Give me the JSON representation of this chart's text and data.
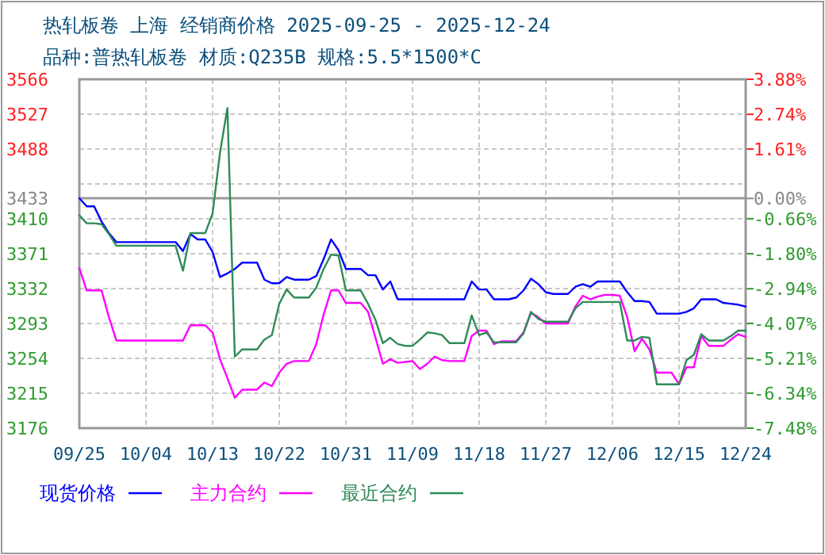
{
  "chart_data": {
    "type": "line",
    "title": "热轧板卷 上海 经销商价格 2025-09-25 - 2025-12-24",
    "subtitle": "品种:普热轧板卷 材质:Q235B 规格:5.5*1500*C",
    "x": [
      "2025-09-25",
      "2025-09-26",
      "2025-09-27",
      "2025-09-28",
      "2025-09-29",
      "2025-09-30",
      "2025-10-01",
      "2025-10-02",
      "2025-10-03",
      "2025-10-04",
      "2025-10-05",
      "2025-10-06",
      "2025-10-07",
      "2025-10-08",
      "2025-10-09",
      "2025-10-10",
      "2025-10-11",
      "2025-10-12",
      "2025-10-13",
      "2025-10-14",
      "2025-10-15",
      "2025-10-16",
      "2025-10-17",
      "2025-10-18",
      "2025-10-19",
      "2025-10-20",
      "2025-10-21",
      "2025-10-22",
      "2025-10-23",
      "2025-10-24",
      "2025-10-25",
      "2025-10-26",
      "2025-10-27",
      "2025-10-28",
      "2025-10-29",
      "2025-10-30",
      "2025-10-31",
      "2025-11-01",
      "2025-11-02",
      "2025-11-03",
      "2025-11-04",
      "2025-11-05",
      "2025-11-06",
      "2025-11-07",
      "2025-11-08",
      "2025-11-09",
      "2025-11-10",
      "2025-11-11",
      "2025-11-12",
      "2025-11-13",
      "2025-11-14",
      "2025-11-15",
      "2025-11-16",
      "2025-11-17",
      "2025-11-18",
      "2025-11-19",
      "2025-11-20",
      "2025-11-21",
      "2025-11-22",
      "2025-11-23",
      "2025-11-24",
      "2025-11-25",
      "2025-11-26",
      "2025-11-27",
      "2025-11-28",
      "2025-11-29",
      "2025-11-30",
      "2025-12-01",
      "2025-12-02",
      "2025-12-03",
      "2025-12-04",
      "2025-12-05",
      "2025-12-06",
      "2025-12-07",
      "2025-12-08",
      "2025-12-09",
      "2025-12-10",
      "2025-12-11",
      "2025-12-12",
      "2025-12-13",
      "2025-12-14",
      "2025-12-15",
      "2025-12-16",
      "2025-12-17",
      "2025-12-18",
      "2025-12-19",
      "2025-12-20",
      "2025-12-21",
      "2025-12-22",
      "2025-12-23",
      "2025-12-24"
    ],
    "series": [
      {
        "name": "现货价格",
        "color": "#0000ff",
        "values": [
          3433,
          3424,
          3424,
          3407,
          3394,
          3384,
          3384,
          3384,
          3384,
          3384,
          3384,
          3384,
          3384,
          3384,
          3374,
          3393,
          3387,
          3387,
          3373,
          3345,
          3349,
          3354,
          3361,
          3361,
          3361,
          3342,
          3338,
          3338,
          3345,
          3342,
          3342,
          3342,
          3346,
          3365,
          3387,
          3375,
          3354,
          3354,
          3354,
          3347,
          3347,
          3331,
          3340,
          3320,
          3320,
          3320,
          3320,
          3320,
          3320,
          3320,
          3320,
          3320,
          3320,
          3340,
          3331,
          3331,
          3320,
          3320,
          3320,
          3322,
          3330,
          3343,
          3337,
          3328,
          3326,
          3326,
          3326,
          3334,
          3337,
          3334,
          3340,
          3340,
          3340,
          3340,
          3328,
          3318,
          3318,
          3317,
          3304,
          3304,
          3304,
          3304,
          3306,
          3310,
          3320,
          3320,
          3320,
          3316,
          3315,
          3314,
          3312
        ]
      },
      {
        "name": "主力合约",
        "color": "#ff00ff",
        "values": [
          3355,
          3330,
          3330,
          3330,
          3300,
          3274,
          3274,
          3274,
          3274,
          3274,
          3274,
          3274,
          3274,
          3274,
          3274,
          3291,
          3291,
          3291,
          3283,
          3253,
          3232,
          3210,
          3219,
          3219,
          3219,
          3227,
          3223,
          3238,
          3248,
          3251,
          3251,
          3251,
          3270,
          3303,
          3330,
          3330,
          3316,
          3316,
          3316,
          3306,
          3277,
          3248,
          3253,
          3249,
          3250,
          3251,
          3242,
          3248,
          3256,
          3252,
          3251,
          3251,
          3251,
          3279,
          3285,
          3285,
          3270,
          3273,
          3273,
          3273,
          3283,
          3305,
          3300,
          3293,
          3293,
          3293,
          3293,
          3312,
          3324,
          3320,
          3323,
          3325,
          3325,
          3324,
          3300,
          3262,
          3276,
          3264,
          3238,
          3238,
          3238,
          3225,
          3244,
          3244,
          3279,
          3268,
          3268,
          3268,
          3275,
          3281,
          3278
        ]
      },
      {
        "name": "最近合约",
        "color": "#2e8b57",
        "values": [
          3414,
          3405,
          3405,
          3404,
          3393,
          3380,
          3380,
          3380,
          3380,
          3380,
          3380,
          3380,
          3380,
          3380,
          3352,
          3394,
          3394,
          3394,
          3416,
          3484,
          3534,
          3256,
          3264,
          3264,
          3264,
          3275,
          3280,
          3315,
          3331,
          3322,
          3322,
          3322,
          3333,
          3354,
          3370,
          3369,
          3330,
          3330,
          3330,
          3315,
          3297,
          3271,
          3277,
          3270,
          3268,
          3268,
          3275,
          3283,
          3282,
          3280,
          3271,
          3271,
          3271,
          3302,
          3280,
          3283,
          3272,
          3272,
          3272,
          3272,
          3282,
          3306,
          3298,
          3295,
          3295,
          3295,
          3295,
          3310,
          3317,
          3317,
          3317,
          3317,
          3317,
          3317,
          3274,
          3274,
          3278,
          3277,
          3225,
          3225,
          3225,
          3225,
          3252,
          3258,
          3281,
          3274,
          3274,
          3274,
          3279,
          3285,
          3285
        ]
      }
    ],
    "xlim": [
      "2025-09-25",
      "2025-12-24"
    ],
    "xticks": [
      {
        "value": "2025-09-25",
        "label": "09/25"
      },
      {
        "value": "2025-10-04",
        "label": "10/04"
      },
      {
        "value": "2025-10-13",
        "label": "10/13"
      },
      {
        "value": "2025-10-22",
        "label": "10/22"
      },
      {
        "value": "2025-10-31",
        "label": "10/31"
      },
      {
        "value": "2025-11-09",
        "label": "11/09"
      },
      {
        "value": "2025-11-18",
        "label": "11/18"
      },
      {
        "value": "2025-11-27",
        "label": "11/27"
      },
      {
        "value": "2025-12-06",
        "label": "12/06"
      },
      {
        "value": "2025-12-15",
        "label": "12/15"
      },
      {
        "value": "2025-12-24",
        "label": "12/24"
      }
    ],
    "ylim": [
      3176,
      3566
    ],
    "yticks": [
      3176,
      3215,
      3254,
      3293,
      3332,
      3371,
      3410,
      3433,
      {
        "value": 3449,
        "label": null
      },
      3488,
      3527,
      3566
    ],
    "y2lim": [
      -7.48,
      3.88
    ],
    "y2ticks": [
      {
        "value": -7.48,
        "label": "-7.48%"
      },
      {
        "value": -6.34,
        "label": "-6.34%"
      },
      {
        "value": -5.21,
        "label": "-5.21%"
      },
      {
        "value": -4.07,
        "label": "-4.07%"
      },
      {
        "value": -2.94,
        "label": "-2.94%"
      },
      {
        "value": -1.8,
        "label": "-1.80%"
      },
      {
        "value": -0.66,
        "label": "-0.66%"
      },
      {
        "value": 0,
        "label": "0.00%"
      },
      {
        "value": 1.61,
        "label": "1.61%"
      },
      {
        "value": 2.74,
        "label": "2.74%"
      },
      {
        "value": 3.88,
        "label": "3.88%"
      }
    ],
    "ref_lines": [
      {
        "axis": "y",
        "value": 3433,
        "color": "#999999"
      }
    ],
    "grid": true,
    "legend": "bottom",
    "marker": "none",
    "line_style": "solid"
  }
}
